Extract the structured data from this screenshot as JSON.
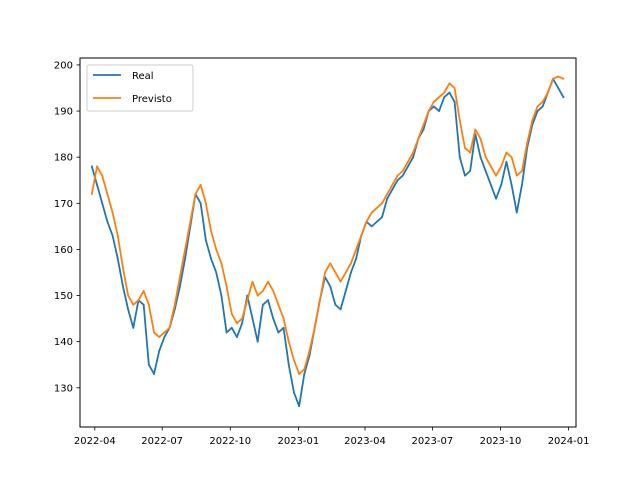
{
  "chart_data": {
    "type": "line",
    "title": "",
    "xlabel": "",
    "ylabel": "",
    "x_axis": {
      "kind": "date",
      "min": "2022-03-12",
      "max": "2024-01-11"
    },
    "y_axis": {
      "min": 121.5,
      "max": 201.5
    },
    "grid": false,
    "legend": {
      "placement": "top-left"
    },
    "x_ticks": [
      "2022-04",
      "2022-07",
      "2022-10",
      "2023-01",
      "2023-04",
      "2023-07",
      "2023-10",
      "2024-01"
    ],
    "y_ticks": [
      "130",
      "140",
      "150",
      "160",
      "170",
      "180",
      "190",
      "200"
    ],
    "series": [
      {
        "name": "Real",
        "color": "#1f77b4",
        "points": [
          [
            "2022-03-28",
            178
          ],
          [
            "2022-04-04",
            174
          ],
          [
            "2022-04-11",
            170
          ],
          [
            "2022-04-18",
            166
          ],
          [
            "2022-04-25",
            163
          ],
          [
            "2022-05-02",
            158
          ],
          [
            "2022-05-09",
            152
          ],
          [
            "2022-05-16",
            147
          ],
          [
            "2022-05-23",
            143
          ],
          [
            "2022-05-30",
            149
          ],
          [
            "2022-06-06",
            148
          ],
          [
            "2022-06-13",
            135
          ],
          [
            "2022-06-20",
            133
          ],
          [
            "2022-06-27",
            138
          ],
          [
            "2022-07-04",
            141
          ],
          [
            "2022-07-11",
            143
          ],
          [
            "2022-07-18",
            147
          ],
          [
            "2022-07-25",
            152
          ],
          [
            "2022-08-01",
            158
          ],
          [
            "2022-08-08",
            165
          ],
          [
            "2022-08-15",
            172
          ],
          [
            "2022-08-22",
            170
          ],
          [
            "2022-08-29",
            162
          ],
          [
            "2022-09-05",
            158
          ],
          [
            "2022-09-12",
            155
          ],
          [
            "2022-09-19",
            150
          ],
          [
            "2022-09-26",
            142
          ],
          [
            "2022-10-03",
            143
          ],
          [
            "2022-10-10",
            141
          ],
          [
            "2022-10-17",
            144
          ],
          [
            "2022-10-24",
            150
          ],
          [
            "2022-10-31",
            145
          ],
          [
            "2022-11-07",
            140
          ],
          [
            "2022-11-14",
            148
          ],
          [
            "2022-11-21",
            149
          ],
          [
            "2022-11-28",
            145
          ],
          [
            "2022-12-05",
            142
          ],
          [
            "2022-12-12",
            143
          ],
          [
            "2022-12-19",
            135
          ],
          [
            "2022-12-26",
            129
          ],
          [
            "2023-01-02",
            126
          ],
          [
            "2023-01-09",
            133
          ],
          [
            "2023-01-16",
            137
          ],
          [
            "2023-01-23",
            143
          ],
          [
            "2023-01-30",
            149
          ],
          [
            "2023-02-06",
            154
          ],
          [
            "2023-02-13",
            152
          ],
          [
            "2023-02-20",
            148
          ],
          [
            "2023-02-27",
            147
          ],
          [
            "2023-03-06",
            151
          ],
          [
            "2023-03-13",
            155
          ],
          [
            "2023-03-20",
            158
          ],
          [
            "2023-03-27",
            163
          ],
          [
            "2023-04-03",
            166
          ],
          [
            "2023-04-10",
            165
          ],
          [
            "2023-04-17",
            166
          ],
          [
            "2023-04-24",
            167
          ],
          [
            "2023-05-01",
            171
          ],
          [
            "2023-05-08",
            173
          ],
          [
            "2023-05-15",
            175
          ],
          [
            "2023-05-22",
            176
          ],
          [
            "2023-05-29",
            178
          ],
          [
            "2023-06-05",
            180
          ],
          [
            "2023-06-12",
            184
          ],
          [
            "2023-06-19",
            186
          ],
          [
            "2023-06-26",
            190
          ],
          [
            "2023-07-03",
            191
          ],
          [
            "2023-07-10",
            190
          ],
          [
            "2023-07-17",
            193
          ],
          [
            "2023-07-24",
            194
          ],
          [
            "2023-07-31",
            192
          ],
          [
            "2023-08-07",
            180
          ],
          [
            "2023-08-14",
            176
          ],
          [
            "2023-08-21",
            177
          ],
          [
            "2023-08-28",
            185
          ],
          [
            "2023-09-04",
            180
          ],
          [
            "2023-09-11",
            177
          ],
          [
            "2023-09-18",
            174
          ],
          [
            "2023-09-25",
            171
          ],
          [
            "2023-10-02",
            174
          ],
          [
            "2023-10-09",
            179
          ],
          [
            "2023-10-16",
            174
          ],
          [
            "2023-10-23",
            168
          ],
          [
            "2023-10-30",
            174
          ],
          [
            "2023-11-06",
            182
          ],
          [
            "2023-11-13",
            187
          ],
          [
            "2023-11-20",
            190
          ],
          [
            "2023-11-27",
            191
          ],
          [
            "2023-12-04",
            194
          ],
          [
            "2023-12-11",
            197
          ],
          [
            "2023-12-18",
            195
          ],
          [
            "2023-12-25",
            193
          ]
        ]
      },
      {
        "name": "Previsto",
        "color": "#ff7f0e",
        "points": [
          [
            "2022-03-28",
            172
          ],
          [
            "2022-04-04",
            178
          ],
          [
            "2022-04-11",
            176
          ],
          [
            "2022-04-18",
            172
          ],
          [
            "2022-04-25",
            168
          ],
          [
            "2022-05-02",
            163
          ],
          [
            "2022-05-09",
            156
          ],
          [
            "2022-05-16",
            150
          ],
          [
            "2022-05-23",
            148
          ],
          [
            "2022-05-30",
            149
          ],
          [
            "2022-06-06",
            151
          ],
          [
            "2022-06-13",
            148
          ],
          [
            "2022-06-20",
            142
          ],
          [
            "2022-06-27",
            141
          ],
          [
            "2022-07-04",
            142
          ],
          [
            "2022-07-11",
            143
          ],
          [
            "2022-07-18",
            148
          ],
          [
            "2022-07-25",
            154
          ],
          [
            "2022-08-01",
            160
          ],
          [
            "2022-08-08",
            166
          ],
          [
            "2022-08-15",
            172
          ],
          [
            "2022-08-22",
            174
          ],
          [
            "2022-08-29",
            170
          ],
          [
            "2022-09-05",
            164
          ],
          [
            "2022-09-12",
            160
          ],
          [
            "2022-09-19",
            157
          ],
          [
            "2022-09-26",
            152
          ],
          [
            "2022-10-03",
            146
          ],
          [
            "2022-10-10",
            144
          ],
          [
            "2022-10-17",
            145
          ],
          [
            "2022-10-24",
            149
          ],
          [
            "2022-10-31",
            153
          ],
          [
            "2022-11-07",
            150
          ],
          [
            "2022-11-14",
            151
          ],
          [
            "2022-11-21",
            153
          ],
          [
            "2022-11-28",
            151
          ],
          [
            "2022-12-05",
            148
          ],
          [
            "2022-12-12",
            145
          ],
          [
            "2022-12-19",
            140
          ],
          [
            "2022-12-26",
            136
          ],
          [
            "2023-01-02",
            133
          ],
          [
            "2023-01-09",
            134
          ],
          [
            "2023-01-16",
            138
          ],
          [
            "2023-01-23",
            143
          ],
          [
            "2023-01-30",
            149
          ],
          [
            "2023-02-06",
            155
          ],
          [
            "2023-02-13",
            157
          ],
          [
            "2023-02-20",
            155
          ],
          [
            "2023-02-27",
            153
          ],
          [
            "2023-03-06",
            155
          ],
          [
            "2023-03-13",
            157
          ],
          [
            "2023-03-20",
            160
          ],
          [
            "2023-03-27",
            163
          ],
          [
            "2023-04-03",
            166
          ],
          [
            "2023-04-10",
            168
          ],
          [
            "2023-04-17",
            169
          ],
          [
            "2023-04-24",
            170
          ],
          [
            "2023-05-01",
            172
          ],
          [
            "2023-05-08",
            174
          ],
          [
            "2023-05-15",
            176
          ],
          [
            "2023-05-22",
            177
          ],
          [
            "2023-05-29",
            179
          ],
          [
            "2023-06-05",
            181
          ],
          [
            "2023-06-12",
            184
          ],
          [
            "2023-06-19",
            187
          ],
          [
            "2023-06-26",
            190
          ],
          [
            "2023-07-03",
            192
          ],
          [
            "2023-07-10",
            193
          ],
          [
            "2023-07-17",
            194
          ],
          [
            "2023-07-24",
            196
          ],
          [
            "2023-07-31",
            195
          ],
          [
            "2023-08-07",
            188
          ],
          [
            "2023-08-14",
            182
          ],
          [
            "2023-08-21",
            181
          ],
          [
            "2023-08-28",
            186
          ],
          [
            "2023-09-04",
            184
          ],
          [
            "2023-09-11",
            180
          ],
          [
            "2023-09-18",
            178
          ],
          [
            "2023-09-25",
            176
          ],
          [
            "2023-10-02",
            178
          ],
          [
            "2023-10-09",
            181
          ],
          [
            "2023-10-16",
            180
          ],
          [
            "2023-10-23",
            176
          ],
          [
            "2023-10-30",
            177
          ],
          [
            "2023-11-06",
            183
          ],
          [
            "2023-11-13",
            188
          ],
          [
            "2023-11-20",
            191
          ],
          [
            "2023-11-27",
            192
          ],
          [
            "2023-12-04",
            194
          ],
          [
            "2023-12-11",
            197
          ],
          [
            "2023-12-18",
            197.5
          ],
          [
            "2023-12-25",
            197
          ]
        ]
      }
    ]
  }
}
